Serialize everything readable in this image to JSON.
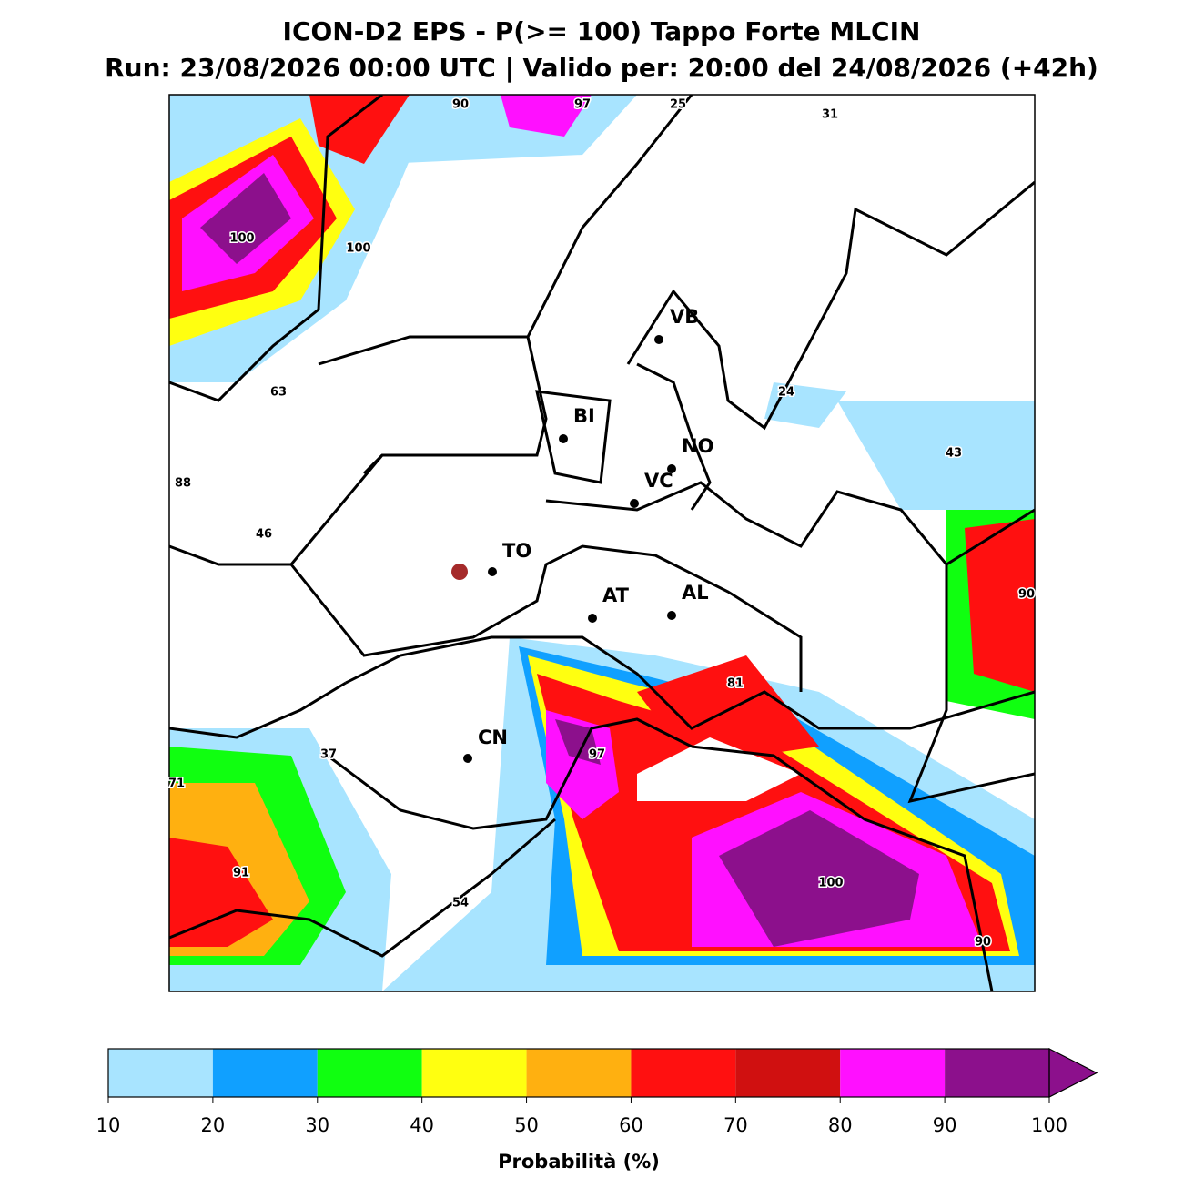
{
  "title": "ICON-D2 EPS - P(>= 100) Tappo Forte MLCIN",
  "subtitle": "Run: 23/08/2026 00:00 UTC | Valido per: 20:00 del 24/08/2026 (+42h)",
  "cities": [
    "VB",
    "BI",
    "NO",
    "VC",
    "TO",
    "AT",
    "AL",
    "CN"
  ],
  "contour_labels": [
    90,
    97,
    25,
    31,
    100,
    100,
    63,
    24,
    43,
    88,
    46,
    90,
    81,
    37,
    97,
    71,
    91,
    54,
    100,
    90
  ],
  "colorbar": {
    "label": "Probabilità (%)",
    "ticks": [
      10,
      20,
      30,
      40,
      50,
      60,
      70,
      80,
      90,
      100
    ],
    "colors": [
      "#a8e4ff",
      "#10a0ff",
      "#10ff10",
      "#ffff10",
      "#ffb010",
      "#ff1010",
      "#d01010",
      "#ff10ff",
      "#8c108c"
    ]
  }
}
